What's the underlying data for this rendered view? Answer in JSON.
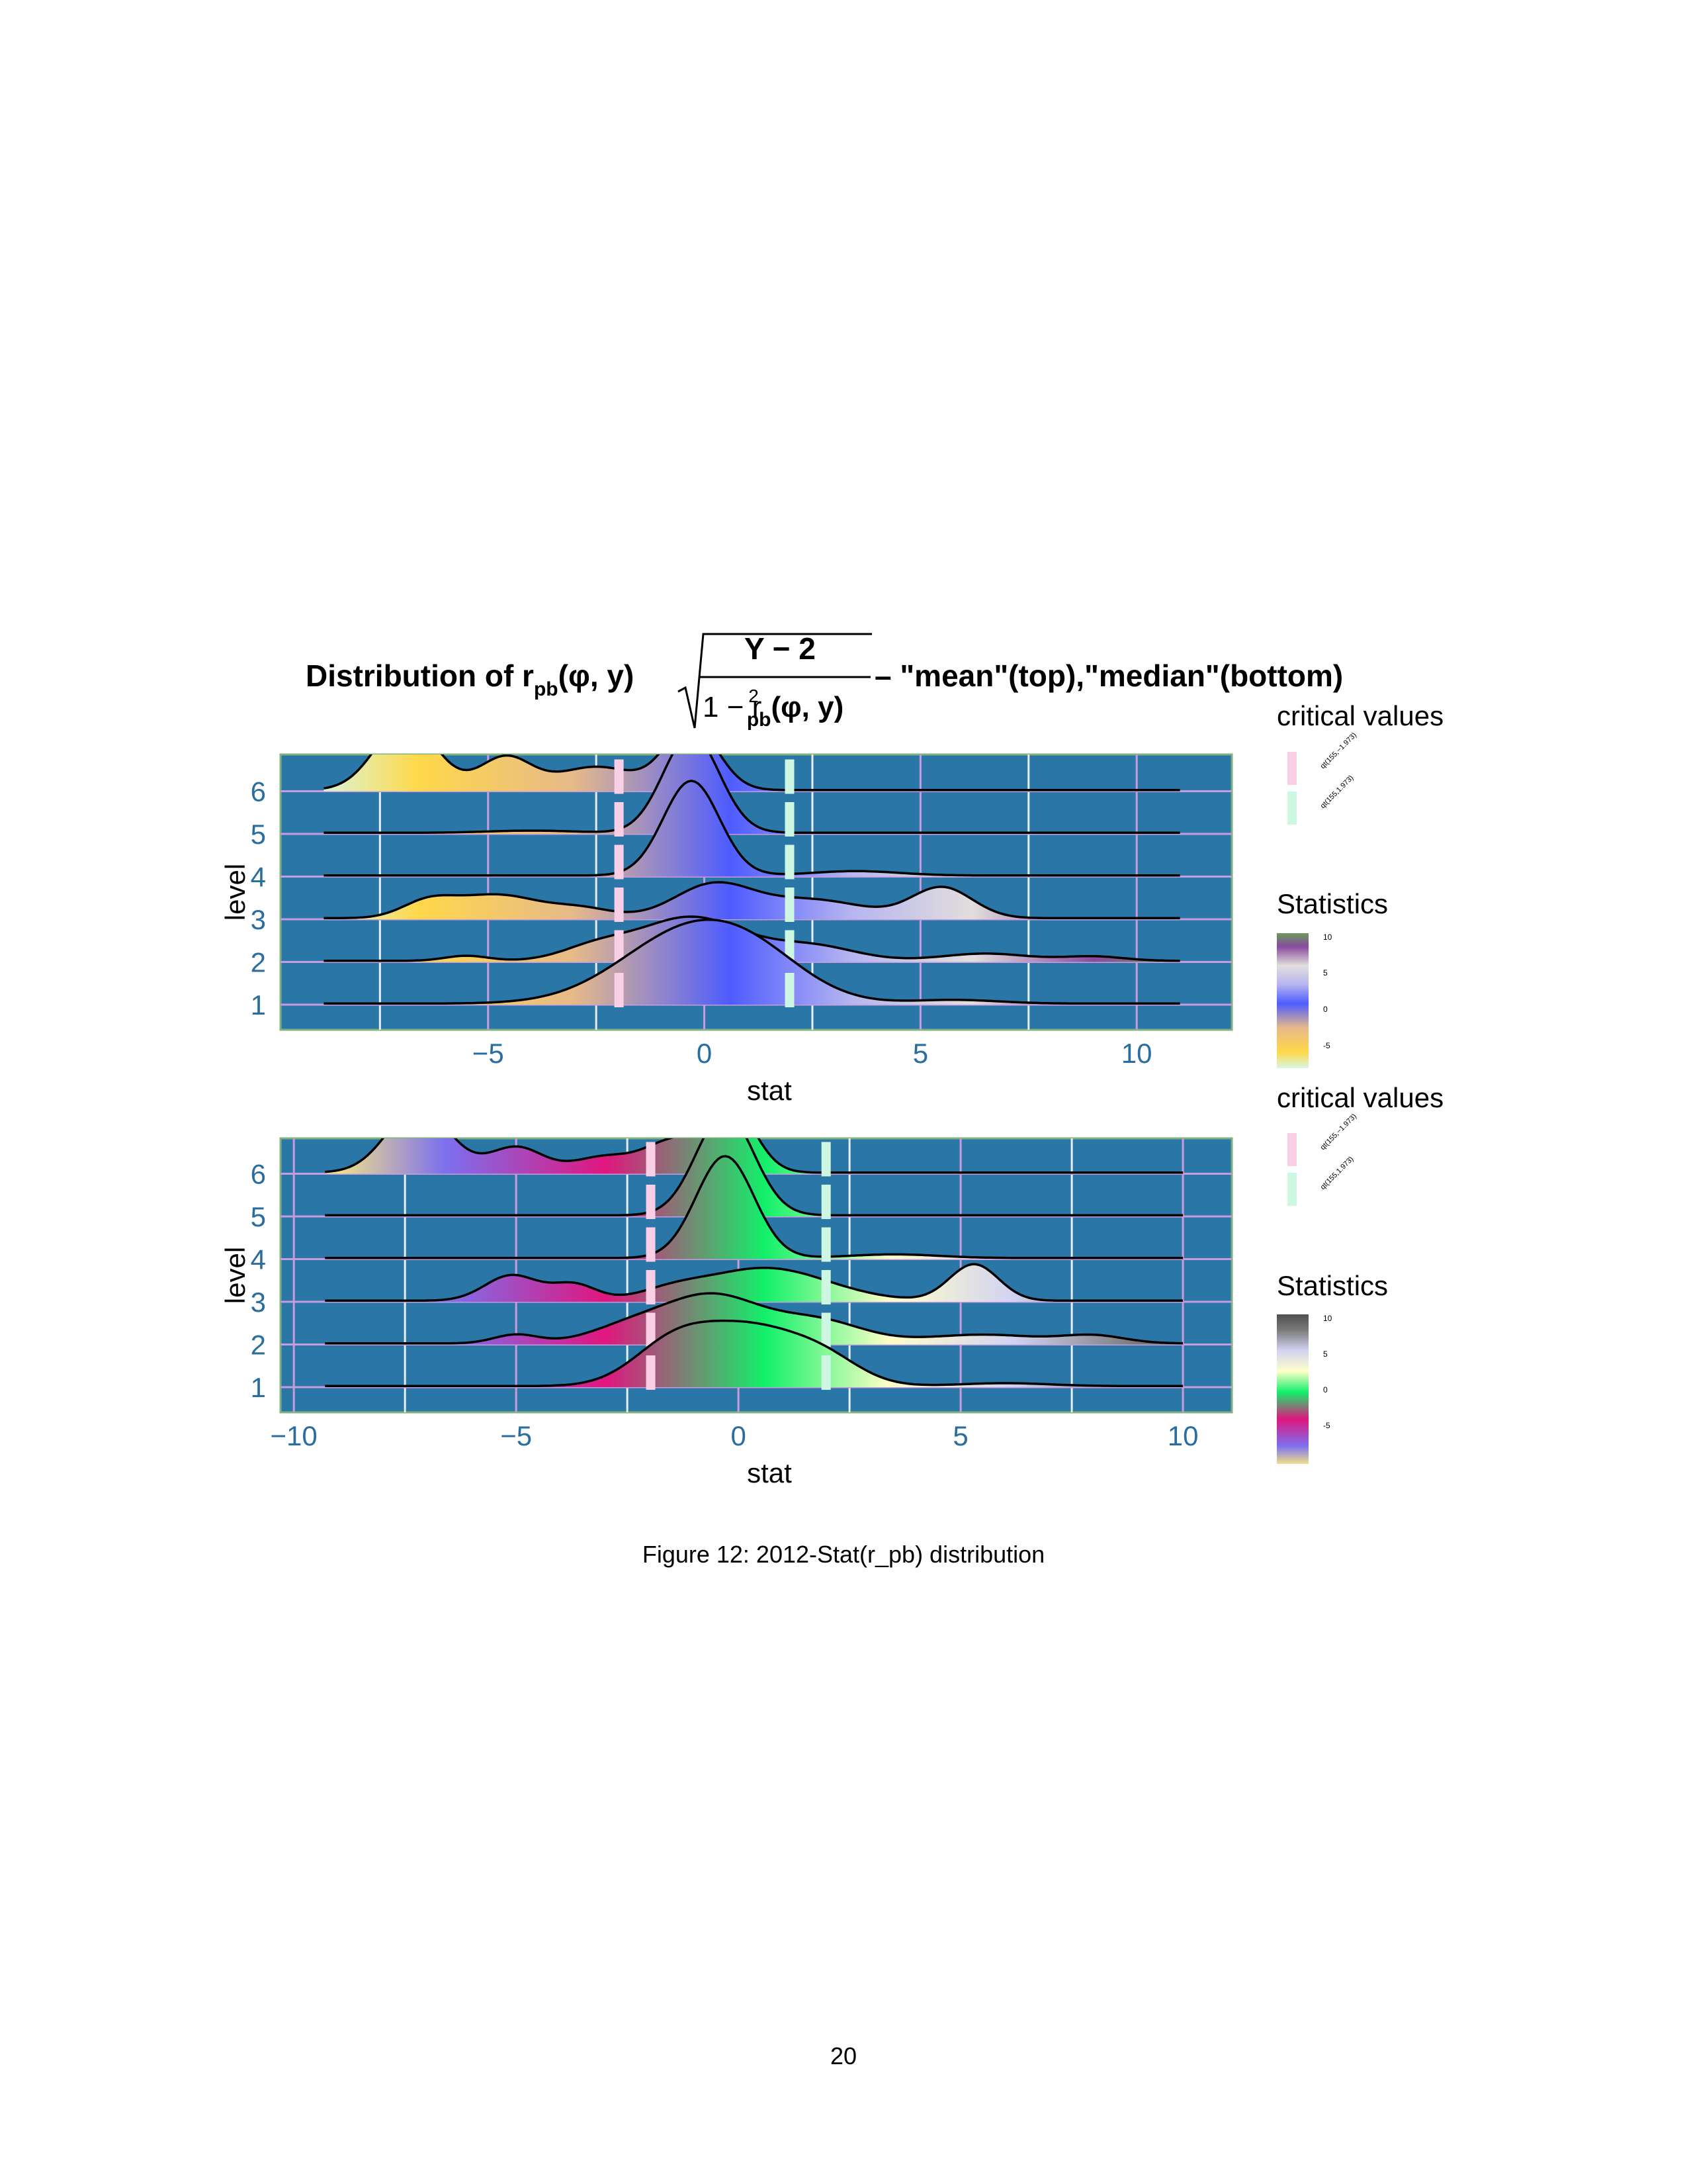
{
  "title": {
    "lead": "Distribution of r",
    "sub": "pb",
    "args": "(φ, y)",
    "numerator": "Y − 2",
    "denom_lead": "1 − r",
    "denom_sup": "2",
    "denom_sub": "pb",
    "denom_args": "(φ, y)",
    "trail": "– \"mean\"(top),\"median\"(bottom)"
  },
  "legend": {
    "critical_title": "critical values",
    "critical_items": [
      {
        "label": "qt(155,−1.973)",
        "color": "#f9cfe6"
      },
      {
        "label": "qt(155,1.973)",
        "color": "#cdf7e3"
      }
    ],
    "statistics_title": "Statistics",
    "statistics_ticks": [
      "10",
      "5",
      "0",
      "-5"
    ]
  },
  "caption": "Figure 12: 2012-Stat(r_pb) distribution",
  "page_number": "20",
  "chart_data": [
    {
      "type": "ridgeline",
      "name": "mean",
      "xlabel": "stat",
      "ylabel": "level",
      "xlim": [
        -9.8,
        12.2
      ],
      "x_ticks": [
        -5,
        0,
        5,
        10
      ],
      "levels": [
        "1",
        "2",
        "3",
        "4",
        "5",
        "6"
      ],
      "grid": true,
      "background": "#2a76a7",
      "critical_values": [
        -1.973,
        1.973
      ],
      "critical_colors": [
        "#f9cfe6",
        "#cdf7e3"
      ],
      "color_scale": [
        {
          "stop": 0.0,
          "color": "#d7f7e3"
        },
        {
          "stop": 0.12,
          "color": "#ffd84a"
        },
        {
          "stop": 0.3,
          "color": "#e6b98a"
        },
        {
          "stop": 0.48,
          "color": "#4e5cff"
        },
        {
          "stop": 0.62,
          "color": "#b7b5f0"
        },
        {
          "stop": 0.76,
          "color": "#e2dedc"
        },
        {
          "stop": 0.9,
          "color": "#8a4aa0"
        },
        {
          "stop": 1.0,
          "color": "#6a9a5a"
        }
      ],
      "series": [
        {
          "level": "1",
          "x_range": [
            -8.8,
            11
          ],
          "peaks": [
            {
              "x": -0.3,
              "h": 1.0,
              "w": 1.6
            },
            {
              "x": 1.3,
              "h": 0.3,
              "w": 1.2
            },
            {
              "x": 5.8,
              "h": 0.05,
              "w": 1.0
            }
          ]
        },
        {
          "level": "2",
          "x_range": [
            -8.8,
            11
          ],
          "peaks": [
            {
              "x": -5.5,
              "h": 0.07,
              "w": 0.5
            },
            {
              "x": -2.5,
              "h": 0.18,
              "w": 0.8
            },
            {
              "x": -0.3,
              "h": 0.6,
              "w": 1.2
            },
            {
              "x": 2.5,
              "h": 0.2,
              "w": 1.0
            },
            {
              "x": 6.5,
              "h": 0.1,
              "w": 1.0
            },
            {
              "x": 9.0,
              "h": 0.06,
              "w": 0.7
            }
          ]
        },
        {
          "level": "3",
          "x_range": [
            -8.8,
            11
          ],
          "peaks": [
            {
              "x": -6.4,
              "h": 0.2,
              "w": 0.6
            },
            {
              "x": -4.8,
              "h": 0.32,
              "w": 1.0
            },
            {
              "x": -2.8,
              "h": 0.12,
              "w": 0.7
            },
            {
              "x": 0.2,
              "h": 0.45,
              "w": 0.9
            },
            {
              "x": 2.5,
              "h": 0.25,
              "w": 1.2
            },
            {
              "x": 5.5,
              "h": 0.42,
              "w": 0.7
            }
          ]
        },
        {
          "level": "4",
          "x_range": [
            -8.8,
            11
          ],
          "peaks": [
            {
              "x": -0.3,
              "h": 1.3,
              "w": 0.65
            },
            {
              "x": 3.5,
              "h": 0.06,
              "w": 1.0
            }
          ]
        },
        {
          "level": "5",
          "x_range": [
            -8.8,
            11
          ],
          "peaks": [
            {
              "x": -0.3,
              "h": 1.35,
              "w": 0.65
            },
            {
              "x": -4.0,
              "h": 0.03,
              "w": 1.0
            }
          ]
        },
        {
          "level": "6",
          "x_range": [
            -8.8,
            11
          ],
          "peaks": [
            {
              "x": -6.9,
              "h": 0.95,
              "w": 0.7
            },
            {
              "x": -4.6,
              "h": 0.45,
              "w": 0.6
            },
            {
              "x": -2.5,
              "h": 0.32,
              "w": 0.9
            },
            {
              "x": -0.3,
              "h": 0.9,
              "w": 0.6
            }
          ]
        }
      ]
    },
    {
      "type": "ridgeline",
      "name": "median",
      "xlabel": "stat",
      "ylabel": "level",
      "xlim": [
        -10.3,
        11.1
      ],
      "x_ticks": [
        -10,
        -5,
        0,
        5,
        10
      ],
      "levels": [
        "1",
        "2",
        "3",
        "4",
        "5",
        "6"
      ],
      "grid": true,
      "background": "#2a76a7",
      "critical_values": [
        -1.973,
        1.973
      ],
      "critical_colors": [
        "#f9cfe6",
        "#cdf7e3"
      ],
      "color_scale": [
        {
          "stop": 0.0,
          "color": "#f0e08a"
        },
        {
          "stop": 0.12,
          "color": "#7c70ee"
        },
        {
          "stop": 0.3,
          "color": "#e0167e"
        },
        {
          "stop": 0.48,
          "color": "#12f06a"
        },
        {
          "stop": 0.62,
          "color": "#ffffc8"
        },
        {
          "stop": 0.76,
          "color": "#d2d2f2"
        },
        {
          "stop": 0.9,
          "color": "#777777"
        },
        {
          "stop": 1.0,
          "color": "#505050"
        }
      ],
      "series": [
        {
          "level": "1",
          "x_range": [
            -9.3,
            10
          ],
          "peaks": [
            {
              "x": -1.5,
              "h": 0.5,
              "w": 0.9
            },
            {
              "x": 0.3,
              "h": 0.78,
              "w": 1.2
            },
            {
              "x": 2.0,
              "h": 0.25,
              "w": 0.8
            },
            {
              "x": 6.0,
              "h": 0.04,
              "w": 1.0
            }
          ]
        },
        {
          "level": "2",
          "x_range": [
            -9.3,
            10
          ],
          "peaks": [
            {
              "x": -5.0,
              "h": 0.12,
              "w": 0.5
            },
            {
              "x": -2.5,
              "h": 0.2,
              "w": 0.9
            },
            {
              "x": -0.6,
              "h": 0.65,
              "w": 1.1
            },
            {
              "x": 1.8,
              "h": 0.3,
              "w": 1.0
            },
            {
              "x": 5.5,
              "h": 0.12,
              "w": 1.3
            },
            {
              "x": 8.0,
              "h": 0.1,
              "w": 0.7
            }
          ]
        },
        {
          "level": "3",
          "x_range": [
            -9.3,
            10
          ],
          "peaks": [
            {
              "x": -5.1,
              "h": 0.35,
              "w": 0.6
            },
            {
              "x": -3.7,
              "h": 0.22,
              "w": 0.5
            },
            {
              "x": -1.5,
              "h": 0.1,
              "w": 0.7
            },
            {
              "x": 0.6,
              "h": 0.45,
              "w": 1.4
            },
            {
              "x": 5.3,
              "h": 0.5,
              "w": 0.55
            }
          ]
        },
        {
          "level": "4",
          "x_range": [
            -9.3,
            10
          ],
          "peaks": [
            {
              "x": -0.3,
              "h": 1.4,
              "w": 0.65
            },
            {
              "x": 3.5,
              "h": 0.05,
              "w": 1.0
            }
          ]
        },
        {
          "level": "5",
          "x_range": [
            -9.3,
            10
          ],
          "peaks": [
            {
              "x": -0.3,
              "h": 1.4,
              "w": 0.65
            }
          ]
        },
        {
          "level": "6",
          "x_range": [
            -9.3,
            10
          ],
          "peaks": [
            {
              "x": -7.2,
              "h": 0.9,
              "w": 0.7
            },
            {
              "x": -5.0,
              "h": 0.35,
              "w": 0.6
            },
            {
              "x": -3.0,
              "h": 0.22,
              "w": 0.7
            },
            {
              "x": -1.5,
              "h": 0.4,
              "w": 0.6
            },
            {
              "x": -0.2,
              "h": 0.95,
              "w": 0.55
            }
          ]
        }
      ]
    }
  ]
}
